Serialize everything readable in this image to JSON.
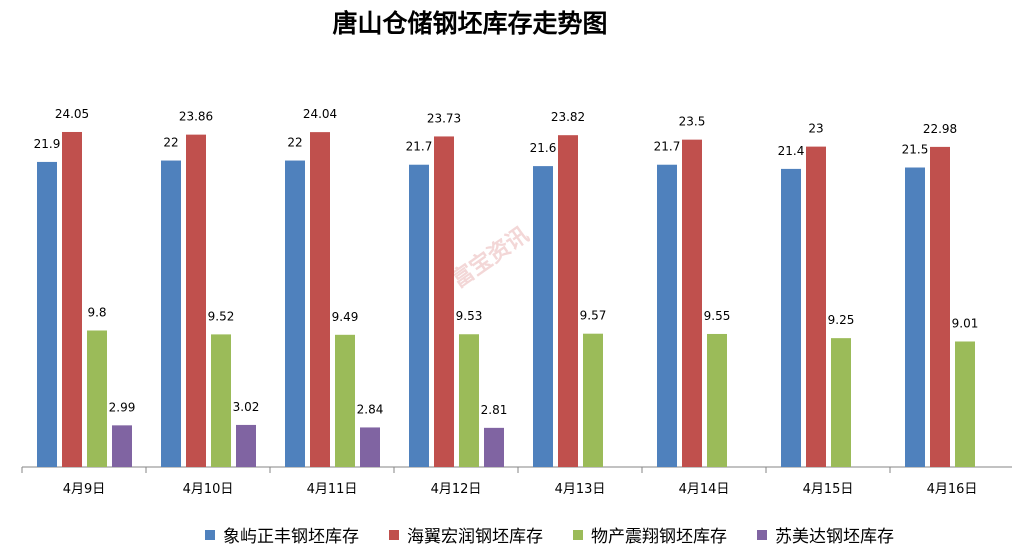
{
  "chart_data": {
    "type": "bar",
    "title": "唐山仓储钢坯库存走势图",
    "categories": [
      "4月9日",
      "4月10日",
      "4月11日",
      "4月12日",
      "4月13日",
      "4月14日",
      "4月15日",
      "4月16日"
    ],
    "series": [
      {
        "name": "象屿正丰钢坯库存",
        "color": "#4F81BD",
        "values": [
          21.9,
          22,
          22,
          21.7,
          21.6,
          21.7,
          21.4,
          21.5
        ]
      },
      {
        "name": "海翼宏润钢坯库存",
        "color": "#C0504D",
        "values": [
          24.05,
          23.86,
          24.04,
          23.73,
          23.82,
          23.5,
          23,
          22.98
        ]
      },
      {
        "name": "物产震翔钢坯库存",
        "color": "#9BBB59",
        "values": [
          9.8,
          9.52,
          9.49,
          9.53,
          9.57,
          9.55,
          9.25,
          9.01
        ]
      },
      {
        "name": "苏美达钢坯库存",
        "color": "#8064A2",
        "values": [
          2.99,
          3.02,
          2.84,
          2.81,
          null,
          null,
          null,
          null
        ]
      }
    ],
    "xlabel": "",
    "ylabel": "",
    "ylim": [
      0,
      25
    ],
    "grid": false,
    "legend": "bottom"
  },
  "watermark": "富宝资讯"
}
